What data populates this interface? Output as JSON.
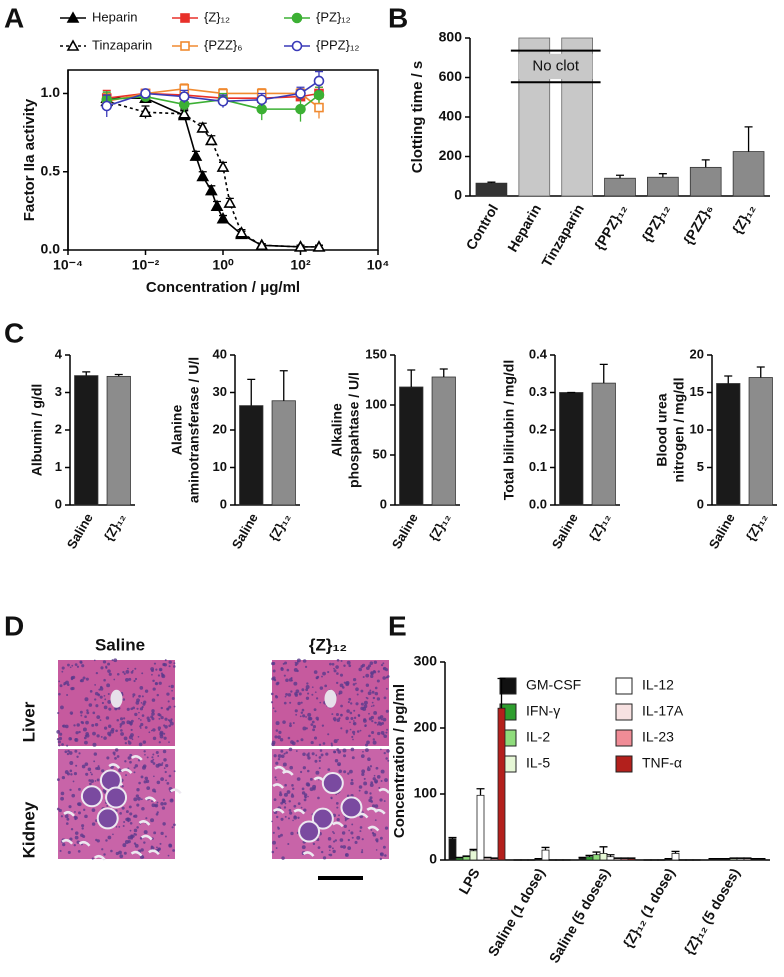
{
  "panel_labels": [
    "A",
    "B",
    "C",
    "D",
    "E"
  ],
  "histology": {
    "columns": [
      "Saline",
      "{Z}₁₂"
    ],
    "rows": [
      "Liver",
      "Kidney"
    ]
  },
  "chart_data": [
    {
      "type": "line",
      "xlabel": "Concentration / μg/ml",
      "ylabel": "Factor IIa activity",
      "xscale": "log",
      "xlim": [
        0.0001,
        10000
      ],
      "xticks": [
        {
          "value": 0.0001,
          "label": "10⁻⁴"
        },
        {
          "value": 0.01,
          "label": "10⁻²"
        },
        {
          "value": 1,
          "label": "10⁰"
        },
        {
          "value": 100,
          "label": "10²"
        },
        {
          "value": 10000,
          "label": "10⁴"
        }
      ],
      "ylim": [
        0,
        1.15
      ],
      "yticks": [
        {
          "value": 0,
          "label": "0.0"
        },
        0.5,
        {
          "value": 1,
          "label": "1.0"
        }
      ],
      "series": [
        {
          "name": "Heparin",
          "color": "#000000",
          "marker": "triangle",
          "filled": true,
          "dashed": false,
          "x": [
            0.001,
            0.01,
            0.1,
            0.2,
            0.3,
            0.5,
            0.7,
            1,
            3,
            10,
            100,
            300
          ],
          "values": [
            0.97,
            0.97,
            0.86,
            0.6,
            0.47,
            0.38,
            0.28,
            0.2,
            0.1,
            0.03,
            0.02,
            0.02
          ],
          "errors": [
            0.03,
            0.03,
            0.03,
            0.03,
            0.03,
            0.03,
            0.03,
            0.02,
            0.02,
            0.01,
            0.01,
            0.01
          ]
        },
        {
          "name": "Tinzaparin",
          "color": "#000000",
          "marker": "triangle",
          "filled": false,
          "dashed": true,
          "x": [
            0.001,
            0.01,
            0.1,
            0.3,
            0.5,
            1,
            1.5,
            3,
            10,
            100,
            300
          ],
          "values": [
            0.95,
            0.88,
            0.87,
            0.78,
            0.7,
            0.53,
            0.3,
            0.11,
            0.03,
            0.02,
            0.02
          ],
          "errors": [
            0.05,
            0.04,
            0.03,
            0.03,
            0.03,
            0.03,
            0.03,
            0.02,
            0.01,
            0.01,
            0.01
          ]
        },
        {
          "name": "{Z}₁₂",
          "color": "#e8302a",
          "marker": "square",
          "filled": true,
          "dashed": false,
          "x": [
            0.001,
            0.01,
            0.1,
            1,
            10,
            100,
            300
          ],
          "values": [
            0.97,
            1.0,
            0.99,
            0.97,
            0.97,
            0.98,
            1.0
          ],
          "errors": [
            0.05,
            0.02,
            0.03,
            0.03,
            0.03,
            0.03,
            0.04
          ]
        },
        {
          "name": "{PZZ}₆",
          "color": "#f08a30",
          "marker": "square",
          "filled": false,
          "dashed": false,
          "x": [
            0.001,
            0.01,
            0.1,
            1,
            10,
            100,
            300
          ],
          "values": [
            0.95,
            1.0,
            1.03,
            1.0,
            1.0,
            1.0,
            0.91
          ],
          "errors": [
            0.05,
            0.02,
            0.03,
            0.03,
            0.03,
            0.03,
            0.07
          ]
        },
        {
          "name": "{PZ}₁₂",
          "color": "#3cb034",
          "marker": "circle",
          "filled": true,
          "dashed": false,
          "x": [
            0.001,
            0.01,
            0.1,
            1,
            10,
            100,
            300
          ],
          "values": [
            0.96,
            0.98,
            0.93,
            0.96,
            0.9,
            0.9,
            0.99
          ],
          "errors": [
            0.05,
            0.03,
            0.05,
            0.04,
            0.07,
            0.08,
            0.05
          ]
        },
        {
          "name": "{PPZ}₁₂",
          "color": "#3a3ab8",
          "marker": "circle",
          "filled": false,
          "dashed": false,
          "x": [
            0.001,
            0.01,
            0.1,
            1,
            10,
            100,
            300
          ],
          "values": [
            0.92,
            1.0,
            0.98,
            0.95,
            0.96,
            1.0,
            1.08
          ],
          "errors": [
            0.07,
            0.02,
            0.04,
            0.04,
            0.04,
            0.04,
            0.06
          ]
        }
      ]
    },
    {
      "type": "bar",
      "ylabel": "Clotting time / s",
      "annotation": "No clot",
      "categories": [
        "Control",
        "Heparin",
        "Tinzaparin",
        "{PPZ}₁₂",
        "{PZ}₁₂",
        "{PZZ}₆",
        "{Z}₁₂"
      ],
      "values": [
        65,
        null,
        null,
        90,
        95,
        145,
        225
      ],
      "errors": [
        5,
        null,
        null,
        15,
        18,
        38,
        125
      ],
      "colors": [
        "#333333",
        "#c8c8c8",
        "#c8c8c8",
        "#8a8a8a",
        "#8a8a8a",
        "#8a8a8a",
        "#8a8a8a"
      ],
      "ylim": [
        0,
        800
      ],
      "yticks": [
        0,
        200,
        400,
        600,
        800
      ]
    },
    {
      "type": "bar",
      "ylabel": [
        "Albumin / g/dl"
      ],
      "categories": [
        "Saline",
        "{Z}₁₂"
      ],
      "values": [
        3.45,
        3.43
      ],
      "errors": [
        0.1,
        0.05
      ],
      "colors": [
        "#1a1a1a",
        "#8c8c8c"
      ],
      "ylim": [
        0,
        4
      ],
      "yticks": [
        0,
        1,
        2,
        3,
        4
      ]
    },
    {
      "type": "bar",
      "ylabel": [
        "Alanine",
        "aminotransferase / U/l"
      ],
      "categories": [
        "Saline",
        "{Z}₁₂"
      ],
      "values": [
        26.5,
        27.8
      ],
      "errors": [
        7,
        8
      ],
      "colors": [
        "#1a1a1a",
        "#8c8c8c"
      ],
      "ylim": [
        0,
        40
      ],
      "yticks": [
        0,
        10,
        20,
        30,
        40
      ]
    },
    {
      "type": "bar",
      "ylabel": [
        "Alkaline",
        "phospahtase / U/l"
      ],
      "categories": [
        "Saline",
        "{Z}₁₂"
      ],
      "values": [
        118,
        128
      ],
      "errors": [
        17,
        8
      ],
      "colors": [
        "#1a1a1a",
        "#8c8c8c"
      ],
      "ylim": [
        0,
        150
      ],
      "yticks": [
        0,
        50,
        100,
        150
      ]
    },
    {
      "type": "bar",
      "ylabel": [
        "Total bilirubin / mg/dl"
      ],
      "categories": [
        "Saline",
        "{Z}₁₂"
      ],
      "values": [
        0.3,
        0.325
      ],
      "errors": [
        0,
        0.05
      ],
      "colors": [
        "#1a1a1a",
        "#8c8c8c"
      ],
      "ylim": [
        0,
        0.4
      ],
      "yticks": [
        {
          "value": 0,
          "label": "0.0"
        },
        0.1,
        0.2,
        0.3,
        0.4
      ]
    },
    {
      "type": "bar",
      "ylabel": [
        "Blood urea",
        "nitrogen / mg/dl"
      ],
      "categories": [
        "Saline",
        "{Z}₁₂"
      ],
      "values": [
        16.2,
        17
      ],
      "errors": [
        1,
        1.4
      ],
      "colors": [
        "#1a1a1a",
        "#8c8c8c"
      ],
      "ylim": [
        0,
        20
      ],
      "yticks": [
        0,
        5,
        10,
        15,
        20
      ]
    },
    {
      "type": "grouped-bar",
      "ylabel": "Concentration / pg/ml",
      "categories": [
        "LPS",
        "Saline (1 dose)",
        "Saline (5 doses)",
        "{Z}₁₂ (1 dose)",
        "{Z}₁₂ (5 doses)"
      ],
      "ylim": [
        0,
        300
      ],
      "yticks": [
        0,
        100,
        200,
        300
      ],
      "series": [
        {
          "name": "GM-CSF",
          "color": "#111111",
          "values": [
            32,
            0,
            3,
            0,
            1
          ],
          "errors": [
            2,
            0,
            1,
            0,
            1
          ]
        },
        {
          "name": "IFN-γ",
          "color": "#2e9e2e",
          "values": [
            3,
            0,
            5,
            0,
            1
          ],
          "errors": [
            1,
            0,
            2,
            0,
            1
          ]
        },
        {
          "name": "IL-2",
          "color": "#8fdc7c",
          "values": [
            5,
            0,
            8,
            0,
            1
          ],
          "errors": [
            1,
            0,
            4,
            0,
            1
          ]
        },
        {
          "name": "IL-5",
          "color": "#e6f7d6",
          "values": [
            14,
            1,
            10,
            1,
            2
          ],
          "errors": [
            2,
            1,
            10,
            1,
            1
          ]
        },
        {
          "name": "IL-12",
          "color": "#ffffff",
          "values": [
            98,
            15,
            5,
            10,
            2
          ],
          "errors": [
            10,
            4,
            3,
            3,
            1
          ]
        },
        {
          "name": "IL-17A",
          "color": "#f7e1e1",
          "values": [
            3,
            0,
            2,
            0,
            2
          ],
          "errors": [
            1,
            0,
            1,
            0,
            1
          ]
        },
        {
          "name": "IL-23",
          "color": "#f08c96",
          "values": [
            2,
            0,
            2,
            0,
            1
          ],
          "errors": [
            1,
            0,
            1,
            0,
            1
          ]
        },
        {
          "name": "TNF-α",
          "color": "#b3201c",
          "values": [
            230,
            0,
            2,
            0,
            1
          ],
          "errors": [
            45,
            0,
            1,
            0,
            1
          ]
        }
      ]
    }
  ]
}
